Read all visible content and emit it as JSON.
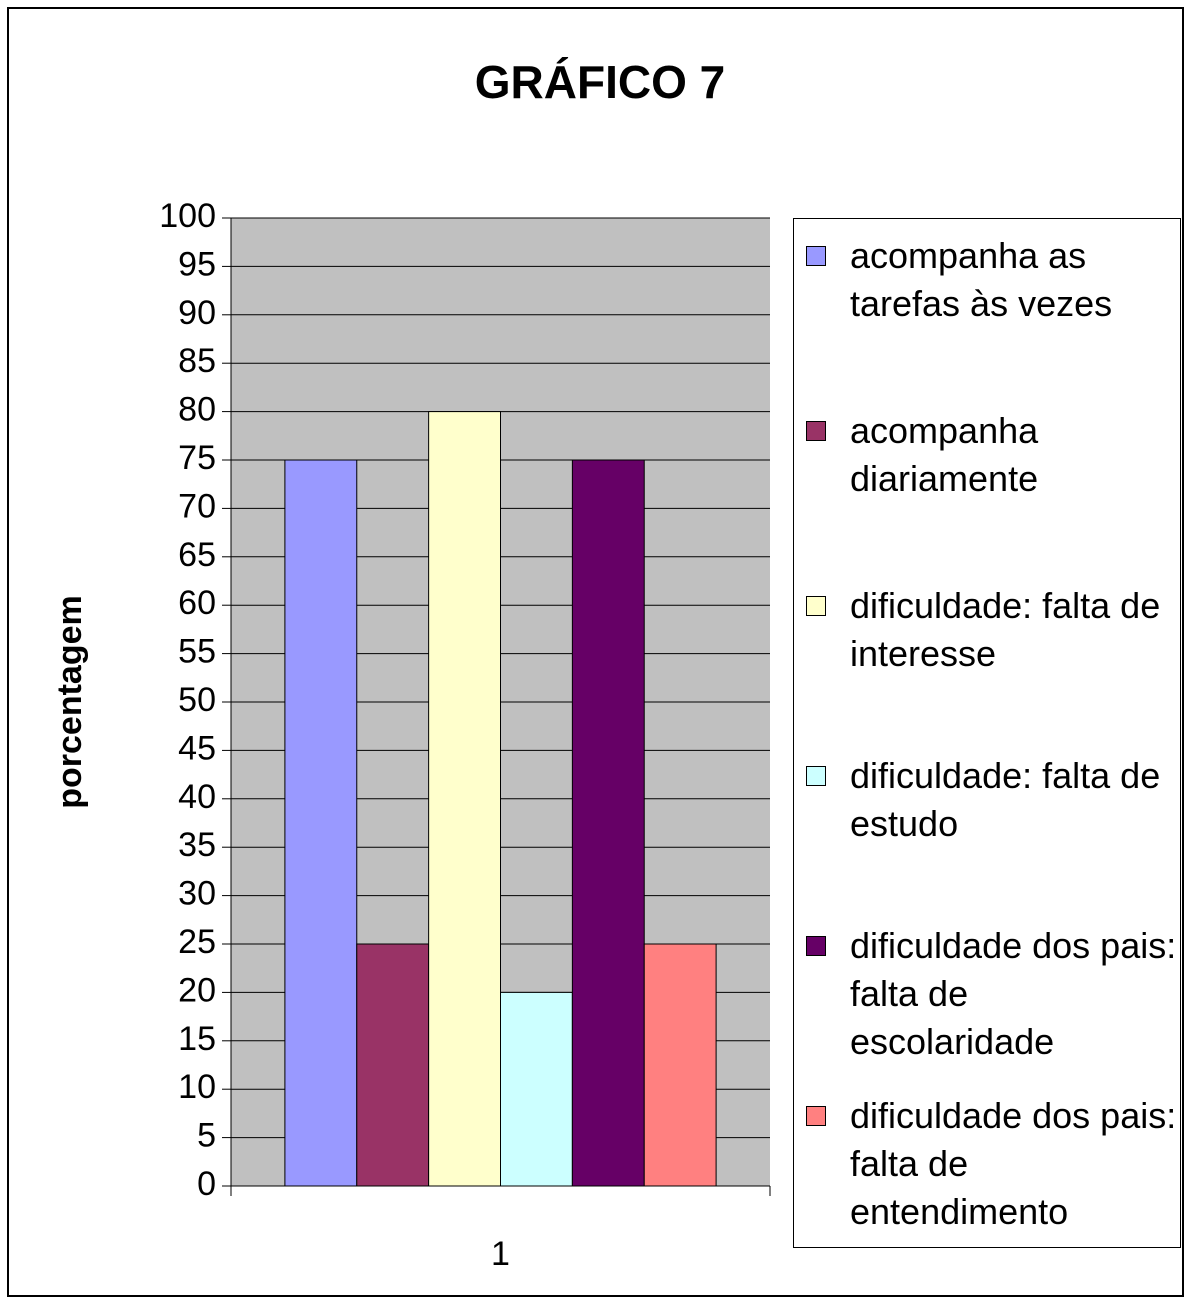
{
  "chart_data": {
    "type": "bar",
    "title": "GRÁFICO 7",
    "y_label": "porcentagem",
    "categories": [
      "1"
    ],
    "series": [
      {
        "name": "acompanha as tarefas às vezes",
        "color": "#9999ff",
        "values": [
          75
        ]
      },
      {
        "name": "acompanha diariamente",
        "color": "#993366",
        "values": [
          25
        ]
      },
      {
        "name": "dificuldade: falta de interesse",
        "color": "#ffffcc",
        "values": [
          80
        ]
      },
      {
        "name": "dificuldade: falta de estudo",
        "color": "#ccffff",
        "values": [
          20
        ]
      },
      {
        "name": "dificuldade dos pais: falta de escolaridade",
        "color": "#660066",
        "values": [
          75
        ]
      },
      {
        "name": "dificuldade dos pais: falta de entendimento",
        "color": "#ff8080",
        "values": [
          25
        ]
      }
    ],
    "ylim": [
      0,
      100
    ],
    "yticks": [
      0,
      5,
      10,
      15,
      20,
      25,
      30,
      35,
      40,
      45,
      50,
      55,
      60,
      65,
      70,
      75,
      80,
      85,
      90,
      95,
      100
    ],
    "grid": true,
    "legend": "right"
  }
}
